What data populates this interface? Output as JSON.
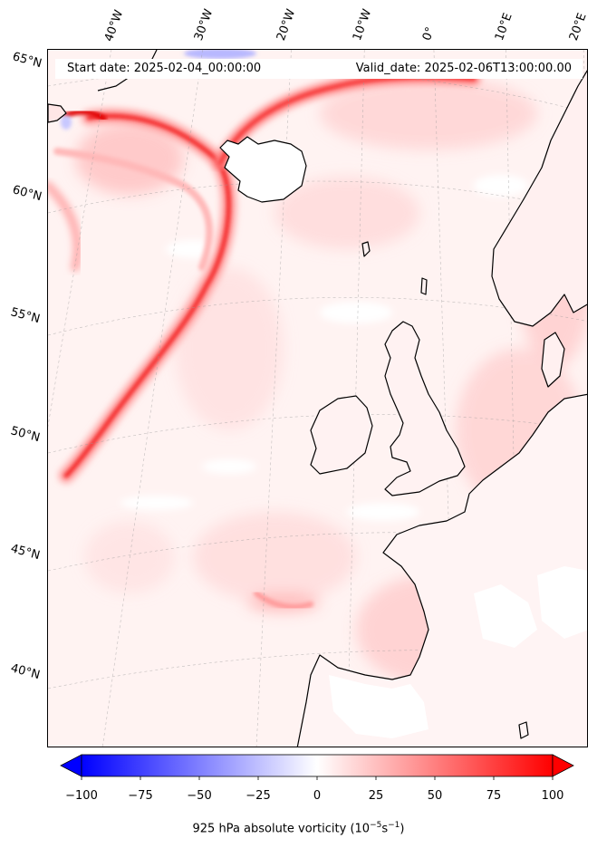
{
  "map": {
    "longitude_labels": [
      "40°W",
      "30°W",
      "20°W",
      "10°W",
      "0°",
      "10°E",
      "20°E"
    ],
    "latitude_labels": [
      "65°N",
      "60°N",
      "55°N",
      "50°N",
      "45°N",
      "40°N"
    ],
    "start_date": "Start date: 2025-02-04_00:00:00",
    "valid_date": "Valid_date: 2025-02-06T13:00:00.00",
    "field": "925 hPa absolute vorticity",
    "colormap": "bwr",
    "colors": {
      "negative": "#0000ff",
      "zero": "#ffffff",
      "positive": "#ff0000",
      "coastline": "#000000"
    }
  },
  "colorbar": {
    "ticks": [
      "−100",
      "−75",
      "−50",
      "−25",
      "0",
      "25",
      "50",
      "75",
      "100"
    ],
    "range": [
      -100,
      100
    ],
    "label_prefix": "925 hPa absolute vorticity (10",
    "label_exp1": "−5",
    "label_mid": "s",
    "label_exp2": "−1",
    "label_suffix": ")"
  }
}
